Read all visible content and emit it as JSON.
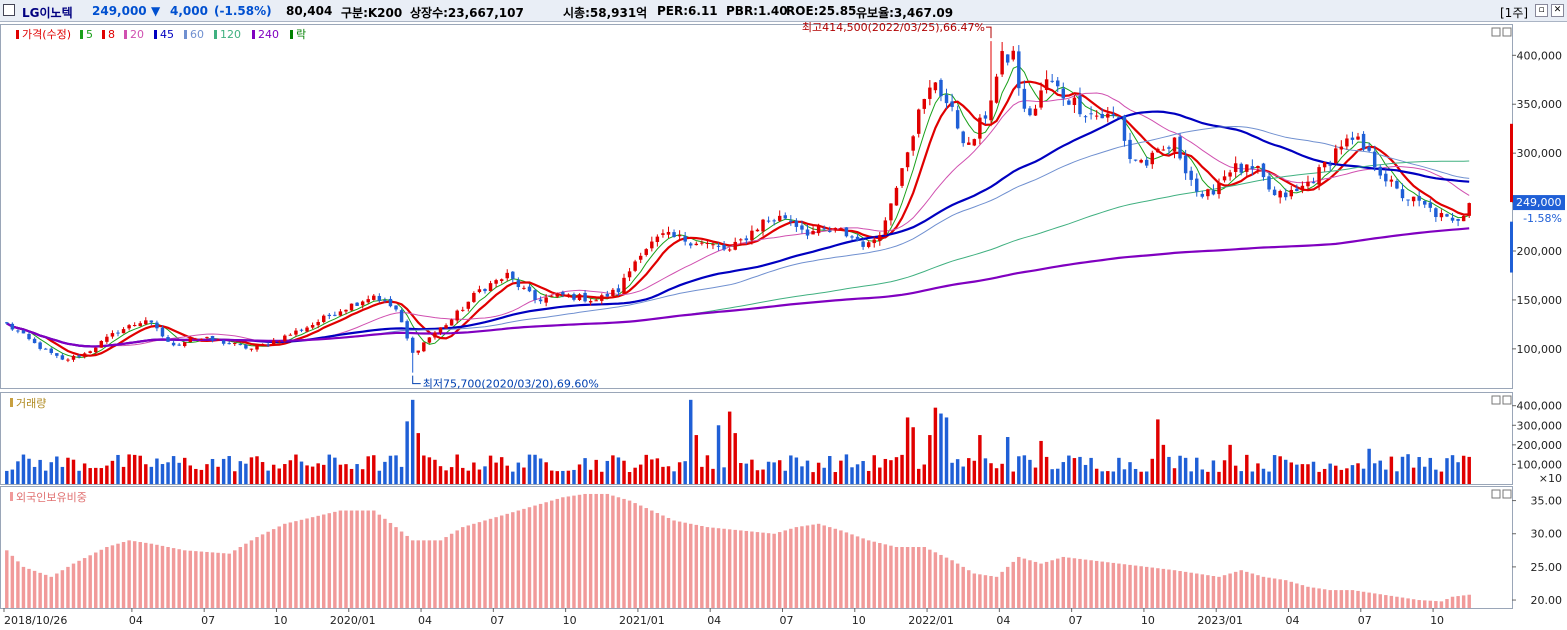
{
  "header": {
    "stock_name": "LG이노텍",
    "price": "249,000",
    "change_arrow": "▼",
    "change": "4,000",
    "change_pct": "(-1.58%)",
    "volume": "80,404",
    "market": "구분:K200",
    "listed_shares": "상장수:23,667,107",
    "market_cap": "시총:58,931억",
    "per": "PER:6.11",
    "pbr": "PBR:1.40",
    "roe": "ROE:25.85",
    "reserve_ratio": "유보율:3,467.09",
    "period_button": "[1주]",
    "colors": {
      "up": "#d40000",
      "down": "#0050d0",
      "name": "#000080"
    }
  },
  "chart_data": [
    {
      "type": "candlestick",
      "title": "",
      "legend": {
        "items": [
          {
            "label": "가격(수정)",
            "color": "#e00000"
          },
          {
            "label": "5",
            "color": "#1aa01a"
          },
          {
            "label": "8",
            "color": "#e00000"
          },
          {
            "label": "20",
            "color": "#d050b0"
          },
          {
            "label": "45",
            "color": "#0000c0"
          },
          {
            "label": "60",
            "color": "#7090d0"
          },
          {
            "label": "120",
            "color": "#40b080"
          },
          {
            "label": "240",
            "color": "#8000c0"
          },
          {
            "label": "락",
            "color": "#008000"
          }
        ]
      },
      "y_ticks": [
        100000,
        150000,
        200000,
        250000,
        300000,
        350000,
        400000
      ],
      "y_tick_labels": [
        "100,000",
        "150,000",
        "200,000",
        "250,000",
        "300,000",
        "350,000",
        "400,000"
      ],
      "ylim": [
        60000,
        432000
      ],
      "x_labels": [
        {
          "label": "2018/10/26",
          "index": 0
        },
        {
          "label": "04",
          "index": 23
        },
        {
          "label": "07",
          "index": 36
        },
        {
          "label": "10",
          "index": 49
        },
        {
          "label": "2020/01",
          "index": 62
        },
        {
          "label": "04",
          "index": 75
        },
        {
          "label": "07",
          "index": 88
        },
        {
          "label": "10",
          "index": 101
        },
        {
          "label": "2021/01",
          "index": 114
        },
        {
          "label": "04",
          "index": 127
        },
        {
          "label": "07",
          "index": 140
        },
        {
          "label": "10",
          "index": 153
        },
        {
          "label": "2022/01",
          "index": 166
        },
        {
          "label": "04",
          "index": 179
        },
        {
          "label": "07",
          "index": 192
        },
        {
          "label": "10",
          "index": 205
        },
        {
          "label": "2023/01",
          "index": 218
        },
        {
          "label": "04",
          "index": 231
        },
        {
          "label": "07",
          "index": 244
        },
        {
          "label": "10",
          "index": 257
        }
      ],
      "periods": 264,
      "close_anchors": [
        [
          0,
          125000
        ],
        [
          5,
          105000
        ],
        [
          10,
          88000
        ],
        [
          14,
          95000
        ],
        [
          20,
          118000
        ],
        [
          25,
          130000
        ],
        [
          30,
          102000
        ],
        [
          33,
          112000
        ],
        [
          38,
          108000
        ],
        [
          44,
          100000
        ],
        [
          49,
          110000
        ],
        [
          55,
          125000
        ],
        [
          60,
          140000
        ],
        [
          66,
          155000
        ],
        [
          70,
          140000
        ],
        [
          73,
          95000
        ],
        [
          76,
          112000
        ],
        [
          80,
          130000
        ],
        [
          85,
          160000
        ],
        [
          90,
          175000
        ],
        [
          95,
          150000
        ],
        [
          100,
          155000
        ],
        [
          106,
          150000
        ],
        [
          110,
          160000
        ],
        [
          114,
          200000
        ],
        [
          118,
          215000
        ],
        [
          124,
          210000
        ],
        [
          130,
          200000
        ],
        [
          136,
          230000
        ],
        [
          140,
          235000
        ],
        [
          144,
          220000
        ],
        [
          150,
          220000
        ],
        [
          155,
          205000
        ],
        [
          158,
          230000
        ],
        [
          161,
          290000
        ],
        [
          164,
          340000
        ],
        [
          167,
          375000
        ],
        [
          170,
          340000
        ],
        [
          173,
          305000
        ],
        [
          176,
          340000
        ],
        [
          179,
          395000
        ],
        [
          181,
          400000
        ],
        [
          183,
          340000
        ],
        [
          185,
          345000
        ],
        [
          187,
          375000
        ],
        [
          190,
          360000
        ],
        [
          195,
          340000
        ],
        [
          200,
          335000
        ],
        [
          202,
          295000
        ],
        [
          205,
          290000
        ],
        [
          210,
          310000
        ],
        [
          215,
          250000
        ],
        [
          220,
          285000
        ],
        [
          225,
          280000
        ],
        [
          228,
          255000
        ],
        [
          232,
          260000
        ],
        [
          236,
          280000
        ],
        [
          240,
          310000
        ],
        [
          243,
          310000
        ],
        [
          246,
          290000
        ],
        [
          250,
          260000
        ],
        [
          255,
          245000
        ],
        [
          258,
          235000
        ],
        [
          260,
          228000
        ],
        [
          262,
          240000
        ],
        [
          263,
          249000
        ]
      ],
      "high": {
        "value": 414500,
        "index": 177,
        "label": "최고414,500(2022/03/25),66.47%"
      },
      "low": {
        "value": 75700,
        "index": 73,
        "label": "최저75,700(2020/03/20),69.60%"
      },
      "last": {
        "value": 249000,
        "label": "249,000",
        "change_label": "-1.58%"
      },
      "moving_averages": [
        {
          "name": "5",
          "color": "#1aa01a",
          "period": 5,
          "width": 1
        },
        {
          "name": "8",
          "color": "#e00000",
          "period": 8,
          "width": 2.2
        },
        {
          "name": "20",
          "color": "#d050b0",
          "period": 20,
          "width": 1
        },
        {
          "name": "45",
          "color": "#0000c0",
          "period": 45,
          "width": 2.2
        },
        {
          "name": "60",
          "color": "#7090d0",
          "period": 60,
          "width": 1
        },
        {
          "name": "120",
          "color": "#40b080",
          "period": 120,
          "width": 1
        },
        {
          "name": "240",
          "color": "#8000c0",
          "period": 240,
          "width": 2.2
        }
      ]
    },
    {
      "type": "bar",
      "title": "거래량",
      "legend_label": "거래량",
      "unit_note": "×10",
      "y_ticks": [
        100000,
        200000,
        300000,
        400000
      ],
      "y_tick_labels": [
        "100,000",
        "200,000",
        "300,000",
        "400,000"
      ],
      "ylim": [
        0,
        470000
      ],
      "base": 110000,
      "spikes": [
        [
          72,
          320000
        ],
        [
          73,
          430000
        ],
        [
          74,
          260000
        ],
        [
          123,
          430000
        ],
        [
          124,
          250000
        ],
        [
          128,
          300000
        ],
        [
          130,
          370000
        ],
        [
          131,
          260000
        ],
        [
          162,
          340000
        ],
        [
          163,
          290000
        ],
        [
          166,
          250000
        ],
        [
          167,
          390000
        ],
        [
          168,
          360000
        ],
        [
          169,
          340000
        ],
        [
          175,
          250000
        ],
        [
          180,
          240000
        ],
        [
          186,
          220000
        ],
        [
          207,
          330000
        ],
        [
          208,
          200000
        ],
        [
          220,
          200000
        ],
        [
          245,
          180000
        ]
      ]
    },
    {
      "type": "bar",
      "title": "외국인보유비중",
      "legend_label": "외국인보유비중",
      "y_ticks": [
        20,
        25,
        30,
        35
      ],
      "y_tick_labels": [
        "20.00",
        "25.00",
        "30.00",
        "35.00"
      ],
      "ylim": [
        18.8,
        37.2
      ],
      "anchors": [
        [
          0,
          27.5
        ],
        [
          3,
          25.0
        ],
        [
          8,
          23.5
        ],
        [
          12,
          25.5
        ],
        [
          18,
          28.0
        ],
        [
          22,
          29.0
        ],
        [
          26,
          28.5
        ],
        [
          32,
          27.5
        ],
        [
          40,
          27.0
        ],
        [
          45,
          29.5
        ],
        [
          50,
          31.5
        ],
        [
          55,
          32.5
        ],
        [
          60,
          33.5
        ],
        [
          66,
          33.5
        ],
        [
          70,
          31.0
        ],
        [
          73,
          29.0
        ],
        [
          78,
          29.0
        ],
        [
          82,
          31.0
        ],
        [
          90,
          33.0
        ],
        [
          96,
          34.5
        ],
        [
          100,
          35.5
        ],
        [
          104,
          36.0
        ],
        [
          108,
          36.0
        ],
        [
          112,
          35.0
        ],
        [
          116,
          33.5
        ],
        [
          120,
          32.0
        ],
        [
          126,
          31.0
        ],
        [
          132,
          30.5
        ],
        [
          138,
          30.0
        ],
        [
          142,
          31.0
        ],
        [
          146,
          31.5
        ],
        [
          150,
          30.5
        ],
        [
          155,
          29.0
        ],
        [
          160,
          28.0
        ],
        [
          165,
          28.0
        ],
        [
          170,
          26.0
        ],
        [
          174,
          24.0
        ],
        [
          178,
          23.5
        ],
        [
          182,
          26.5
        ],
        [
          186,
          25.5
        ],
        [
          190,
          26.5
        ],
        [
          195,
          26.0
        ],
        [
          200,
          25.5
        ],
        [
          205,
          25.0
        ],
        [
          210,
          24.5
        ],
        [
          214,
          24.0
        ],
        [
          218,
          23.5
        ],
        [
          222,
          24.5
        ],
        [
          226,
          23.5
        ],
        [
          230,
          23.0
        ],
        [
          234,
          22.0
        ],
        [
          238,
          21.5
        ],
        [
          242,
          21.5
        ],
        [
          246,
          21.0
        ],
        [
          250,
          20.5
        ],
        [
          254,
          20.0
        ],
        [
          258,
          19.8
        ],
        [
          260,
          20.5
        ],
        [
          263,
          20.8
        ]
      ]
    }
  ]
}
